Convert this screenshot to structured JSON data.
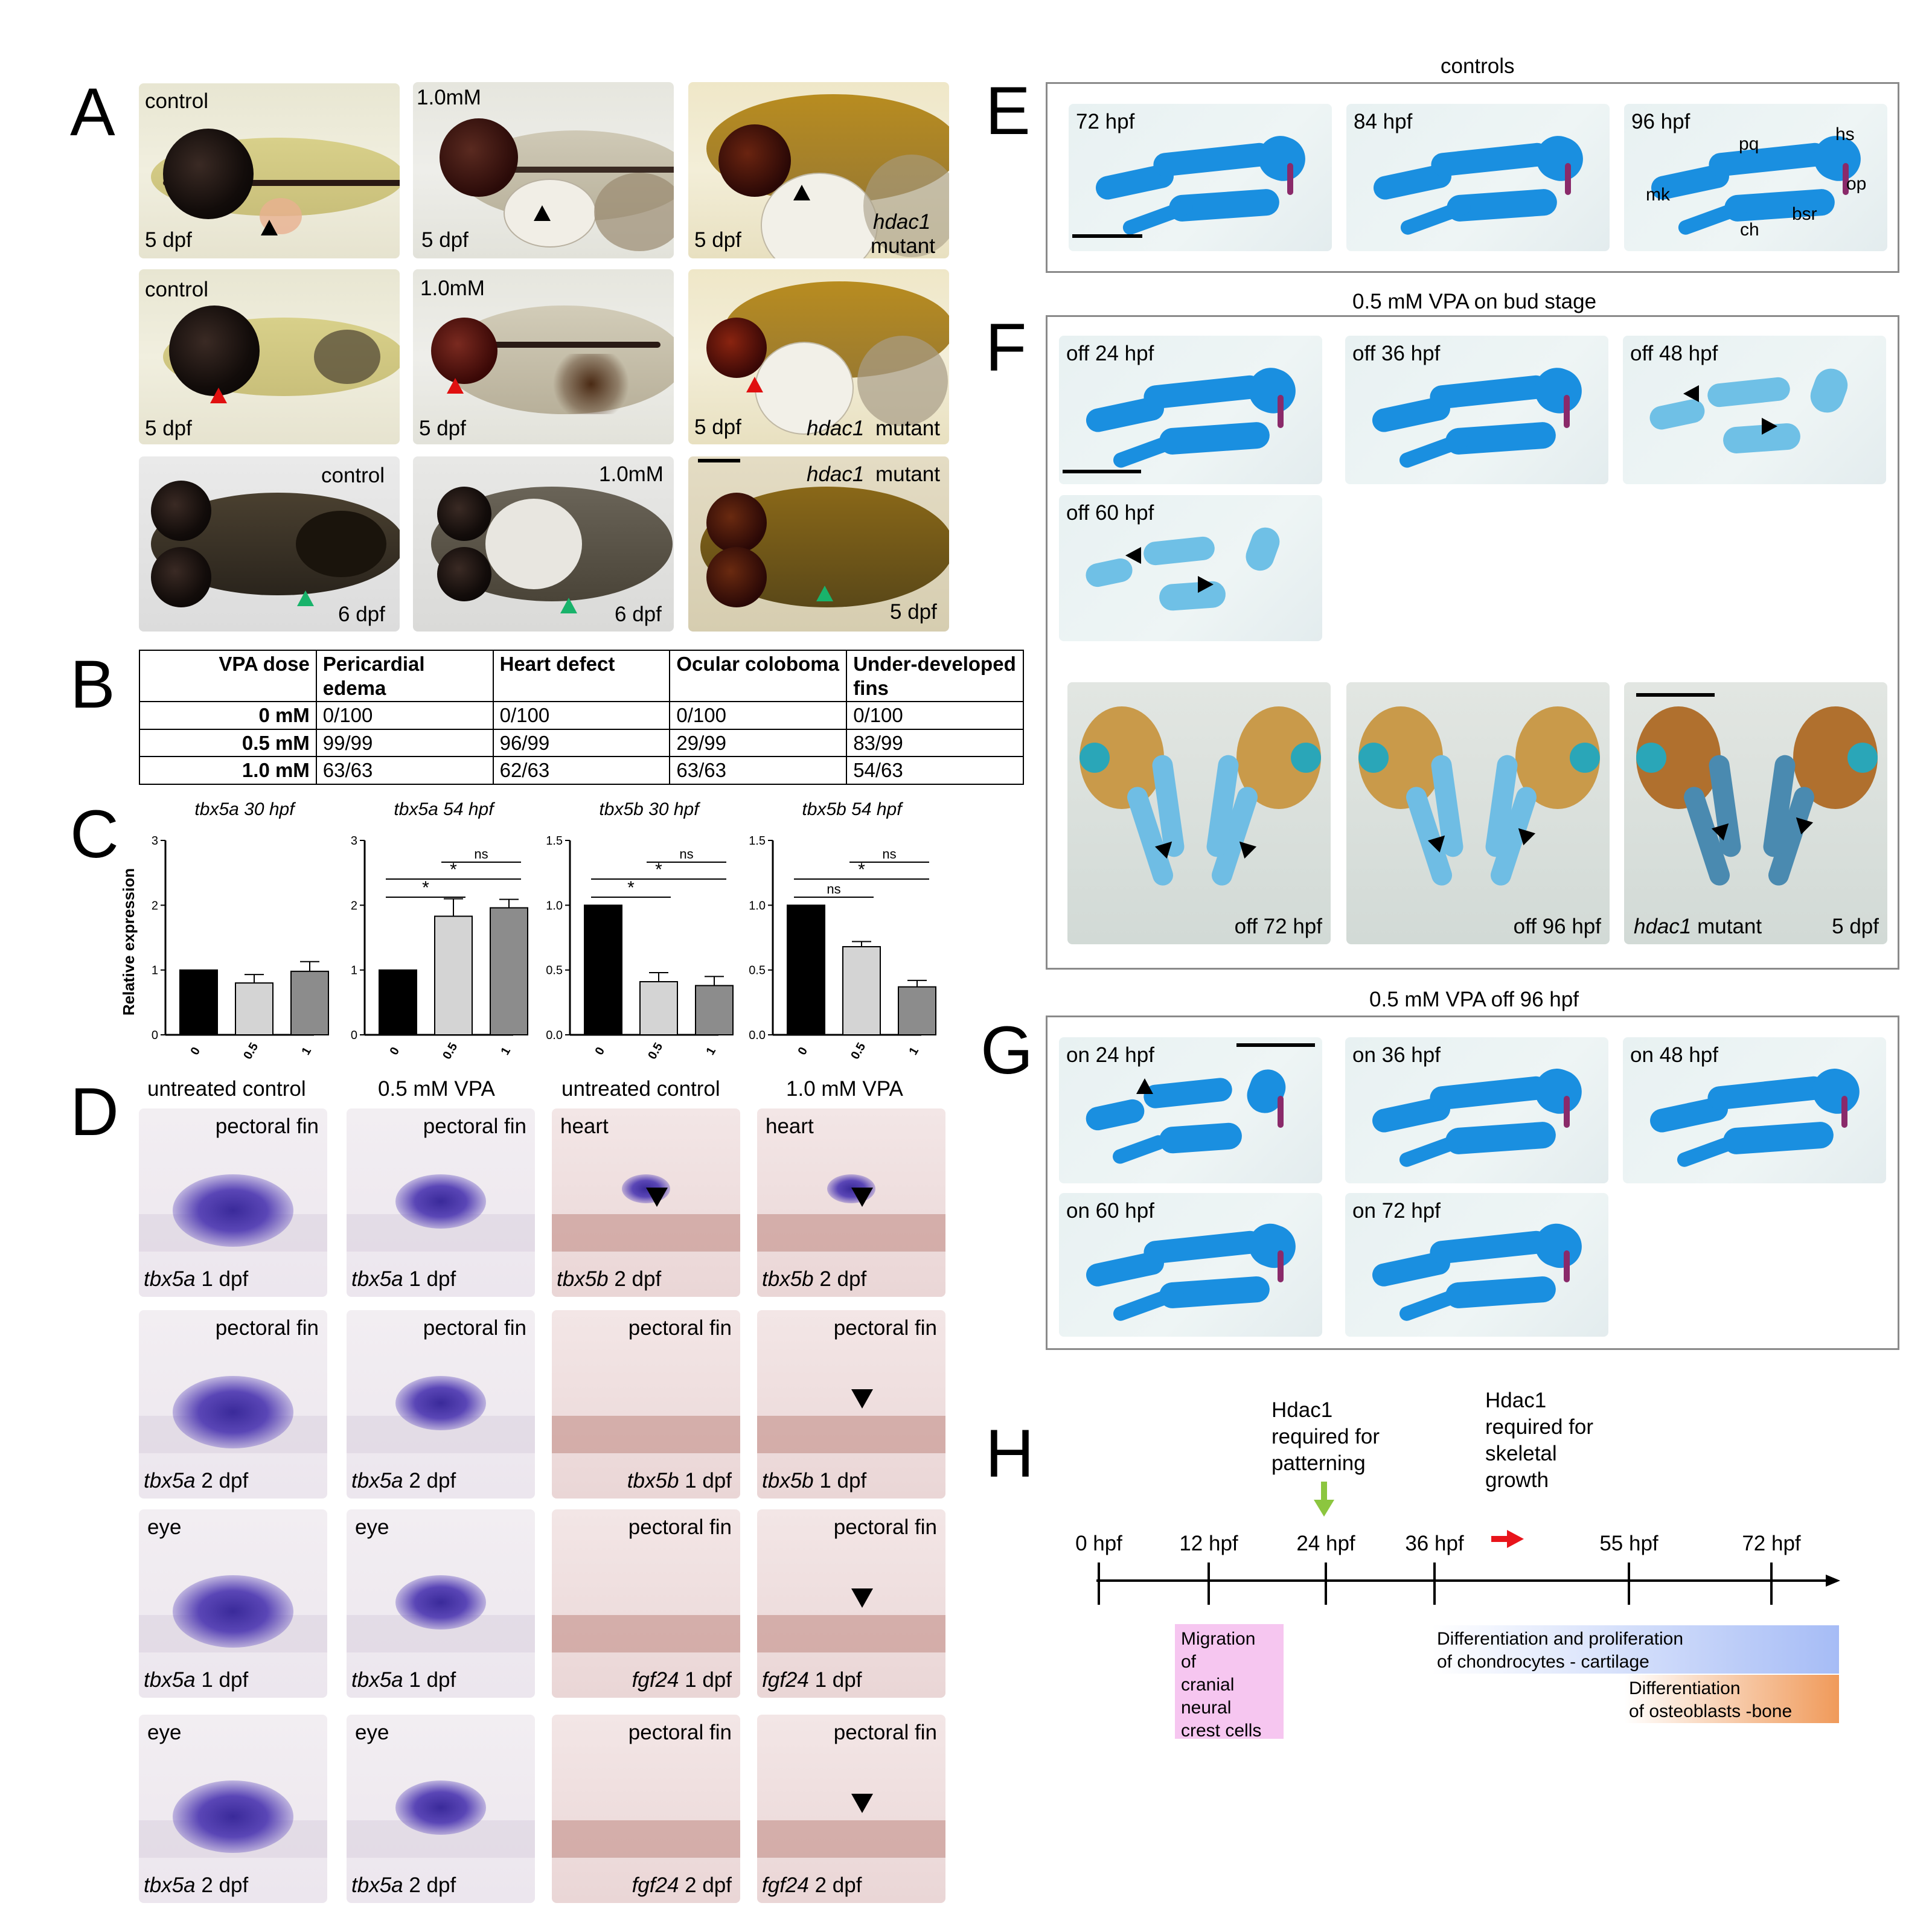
{
  "panel_letters": [
    "A",
    "B",
    "C",
    "D",
    "E",
    "F",
    "G",
    "H"
  ],
  "panelA": {
    "row1": [
      {
        "top_label": "control",
        "bottom_label": "5 dpf"
      },
      {
        "top_label": "1.0mM",
        "bottom_label": "5 dpf"
      },
      {
        "bottom_label": "5 dpf",
        "right_label_1": "hdac1",
        "right_label_2": "mutant"
      }
    ],
    "row2": [
      {
        "top_label": "control",
        "bottom_label": "5 dpf"
      },
      {
        "top_label": "1.0mM",
        "bottom_label": "5 dpf"
      },
      {
        "bottom_label": "5 dpf",
        "right_label_italic": "hdac1",
        "right_label_plain": "mutant"
      }
    ],
    "row3": [
      {
        "top_label": "control",
        "bottom_label": "6 dpf"
      },
      {
        "top_label": "1.0mM",
        "bottom_label": "6 dpf"
      },
      {
        "top_label_italic": "hdac1",
        "top_label_plain": "mutant",
        "bottom_label": "5 dpf"
      }
    ]
  },
  "panelB": {
    "headers": [
      "VPA dose",
      "Pericardial edema",
      "Heart defect",
      "Ocular coloboma",
      "Under-developed fins"
    ],
    "rows": [
      {
        "dose": "0 mM",
        "values": [
          "0/100",
          "0/100",
          "0/100",
          "0/100"
        ]
      },
      {
        "dose": "0.5 mM",
        "values": [
          "99/99",
          "96/99",
          "29/99",
          "83/99"
        ]
      },
      {
        "dose": "1.0 mM",
        "values": [
          "63/63",
          "62/63",
          "63/63",
          "54/63"
        ]
      }
    ]
  },
  "chart_data": [
    {
      "type": "bar",
      "title": "tbx5a 30 hpf",
      "ylabel": "Relative expression",
      "categories": [
        "0",
        "0.5",
        "1"
      ],
      "values": [
        1.0,
        0.8,
        0.98
      ],
      "errors": [
        0.0,
        0.13,
        0.15
      ],
      "ylim": [
        0,
        3
      ],
      "yticks": [
        "0",
        "1",
        "2",
        "3"
      ],
      "bar_colors": [
        "#000000",
        "#d4d4d4",
        "#8c8c8c"
      ],
      "significance": []
    },
    {
      "type": "bar",
      "title": "tbx5a 54 hpf",
      "categories": [
        "0",
        "0.5",
        "1"
      ],
      "values": [
        1.0,
        1.83,
        1.96
      ],
      "errors": [
        0.0,
        0.27,
        0.13
      ],
      "ylim": [
        0,
        3
      ],
      "yticks": [
        "0",
        "1",
        "2",
        "3"
      ],
      "bar_colors": [
        "#000000",
        "#d4d4d4",
        "#8c8c8c"
      ],
      "significance": [
        {
          "from": "0",
          "to": "0.5",
          "label": "*"
        },
        {
          "from": "0",
          "to": "1",
          "label": "*"
        },
        {
          "from": "0.5",
          "to": "1",
          "label": "ns"
        }
      ]
    },
    {
      "type": "bar",
      "title": "tbx5b 30 hpf",
      "categories": [
        "0",
        "0.5",
        "1"
      ],
      "values": [
        1.0,
        0.41,
        0.38
      ],
      "errors": [
        0.0,
        0.07,
        0.07
      ],
      "ylim": [
        0,
        1.5
      ],
      "yticks": [
        "0.0",
        "0.5",
        "1.0",
        "1.5"
      ],
      "bar_colors": [
        "#000000",
        "#d4d4d4",
        "#8c8c8c"
      ],
      "significance": [
        {
          "from": "0",
          "to": "0.5",
          "label": "*"
        },
        {
          "from": "0",
          "to": "1",
          "label": "*"
        },
        {
          "from": "0.5",
          "to": "1",
          "label": "ns"
        }
      ]
    },
    {
      "type": "bar",
      "title": "tbx5b 54 hpf",
      "categories": [
        "0",
        "0.5",
        "1"
      ],
      "values": [
        1.0,
        0.68,
        0.37
      ],
      "errors": [
        0.0,
        0.04,
        0.05
      ],
      "ylim": [
        0,
        1.5
      ],
      "yticks": [
        "0.0",
        "0.5",
        "1.0",
        "1.5"
      ],
      "bar_colors": [
        "#000000",
        "#d4d4d4",
        "#8c8c8c"
      ],
      "significance": [
        {
          "from": "0",
          "to": "0.5",
          "label": "ns"
        },
        {
          "from": "0",
          "to": "1",
          "label": "*"
        },
        {
          "from": "0.5",
          "to": "1",
          "label": "ns"
        }
      ]
    }
  ],
  "panelD": {
    "column_headers": [
      "untreated control",
      "0.5 mM VPA",
      "untreated control",
      "1.0 mM VPA"
    ],
    "rows": [
      [
        {
          "top": "pectoral fin",
          "gene": "tbx5a",
          "stage": "1 dpf"
        },
        {
          "top": "pectoral fin",
          "gene": "tbx5a",
          "stage": "1 dpf"
        },
        {
          "top": "heart",
          "gene": "tbx5b",
          "stage": "2 dpf"
        },
        {
          "top": "heart",
          "gene": "tbx5b",
          "stage": "2 dpf"
        }
      ],
      [
        {
          "top": "pectoral fin",
          "gene": "tbx5a",
          "stage": "2 dpf"
        },
        {
          "top": "pectoral fin",
          "gene": "tbx5a",
          "stage": "2 dpf"
        },
        {
          "top": "pectoral fin",
          "gene": "tbx5b",
          "stage": "1 dpf"
        },
        {
          "top": "pectoral fin",
          "gene": "tbx5b",
          "stage": "1 dpf"
        }
      ],
      [
        {
          "top": "eye",
          "gene": "tbx5a",
          "stage": "1 dpf"
        },
        {
          "top": "eye",
          "gene": "tbx5a",
          "stage": "1 dpf"
        },
        {
          "top": "pectoral fin",
          "gene": "fgf24",
          "stage": "1 dpf"
        },
        {
          "top": "pectoral fin",
          "gene": "fgf24",
          "stage": "1 dpf"
        }
      ],
      [
        {
          "top": "eye",
          "gene": "tbx5a",
          "stage": "2 dpf"
        },
        {
          "top": "eye",
          "gene": "tbx5a",
          "stage": "2 dpf"
        },
        {
          "top": "pectoral fin",
          "gene": "fgf24",
          "stage": "2 dpf"
        },
        {
          "top": "pectoral fin",
          "gene": "fgf24",
          "stage": "2 dpf"
        }
      ]
    ]
  },
  "panelE": {
    "title": "controls",
    "images": [
      "72 hpf",
      "84 hpf",
      "96 hpf"
    ],
    "structures": [
      "pq",
      "hs",
      "op",
      "mk",
      "bsr",
      "ch"
    ]
  },
  "panelF": {
    "title": "0.5 mM VPA on bud stage",
    "images": [
      "off 24 hpf",
      "off 36 hpf",
      "off 48 hpf",
      "off 60 hpf"
    ],
    "ventral": [
      {
        "label": "off 72 hpf"
      },
      {
        "label": "off 96 hpf"
      },
      {
        "label_italic": "hdac1",
        "label_plain": "mutant",
        "stage": "5 dpf"
      }
    ]
  },
  "panelG": {
    "title": "0.5 mM VPA off 96 hpf",
    "images": [
      "on 24 hpf",
      "on 36 hpf",
      "on 48 hpf",
      "on 60 hpf",
      "on 72 hpf"
    ]
  },
  "panelH": {
    "note1_lines": [
      "Hdac1",
      "required for",
      "patterning"
    ],
    "note2_lines": [
      "Hdac1",
      "required for",
      "skeletal",
      "growth"
    ],
    "ticks": [
      "0 hpf",
      "12 hpf",
      "24 hpf",
      "36 hpf",
      "55 hpf",
      "72 hpf"
    ],
    "box1_lines": [
      "Migration",
      "of",
      "cranial",
      "neural",
      "crest cells"
    ],
    "box2_lines": [
      "Differentiation and proliferation",
      "of chondrocytes - cartilage"
    ],
    "box3_lines": [
      "Differentiation",
      "of osteoblasts -bone"
    ],
    "colors": {
      "box1": "#f6c6f0",
      "box2_start": "#ffffff",
      "box2_end": "#a6bcf6",
      "box3_start": "#ffffff",
      "box3_end": "#f09a5a",
      "green_arrow": "#8cc63f",
      "red_arrow": "#e8141b"
    }
  }
}
